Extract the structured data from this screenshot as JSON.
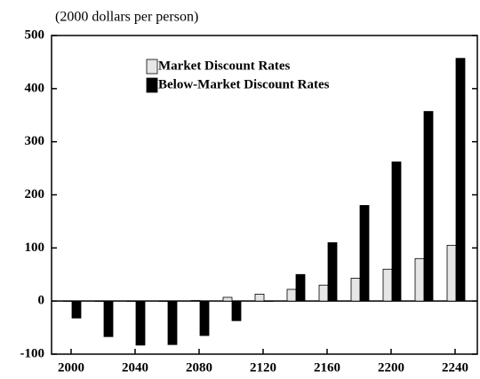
{
  "chart_data": {
    "type": "bar",
    "ylabel": "(2000 dollars per person)",
    "categories": [
      "2000",
      null,
      "2040",
      null,
      "2080",
      null,
      "2120",
      null,
      "2160",
      null,
      "2200",
      null,
      "2240"
    ],
    "series": [
      {
        "name": "Market Discount Rates",
        "color": "#e6e6e6",
        "values": [
          0,
          0,
          0,
          0,
          1,
          7,
          13,
          22,
          30,
          43,
          60,
          80,
          105
        ]
      },
      {
        "name": "Below-Market Discount Rates",
        "color": "#000000",
        "values": [
          -32,
          -67,
          -83,
          -82,
          -65,
          -37,
          0,
          50,
          110,
          180,
          262,
          357,
          457
        ]
      }
    ],
    "ylim": [
      -100,
      500
    ],
    "yticks": [
      -100,
      0,
      100,
      200,
      300,
      400,
      500
    ]
  }
}
